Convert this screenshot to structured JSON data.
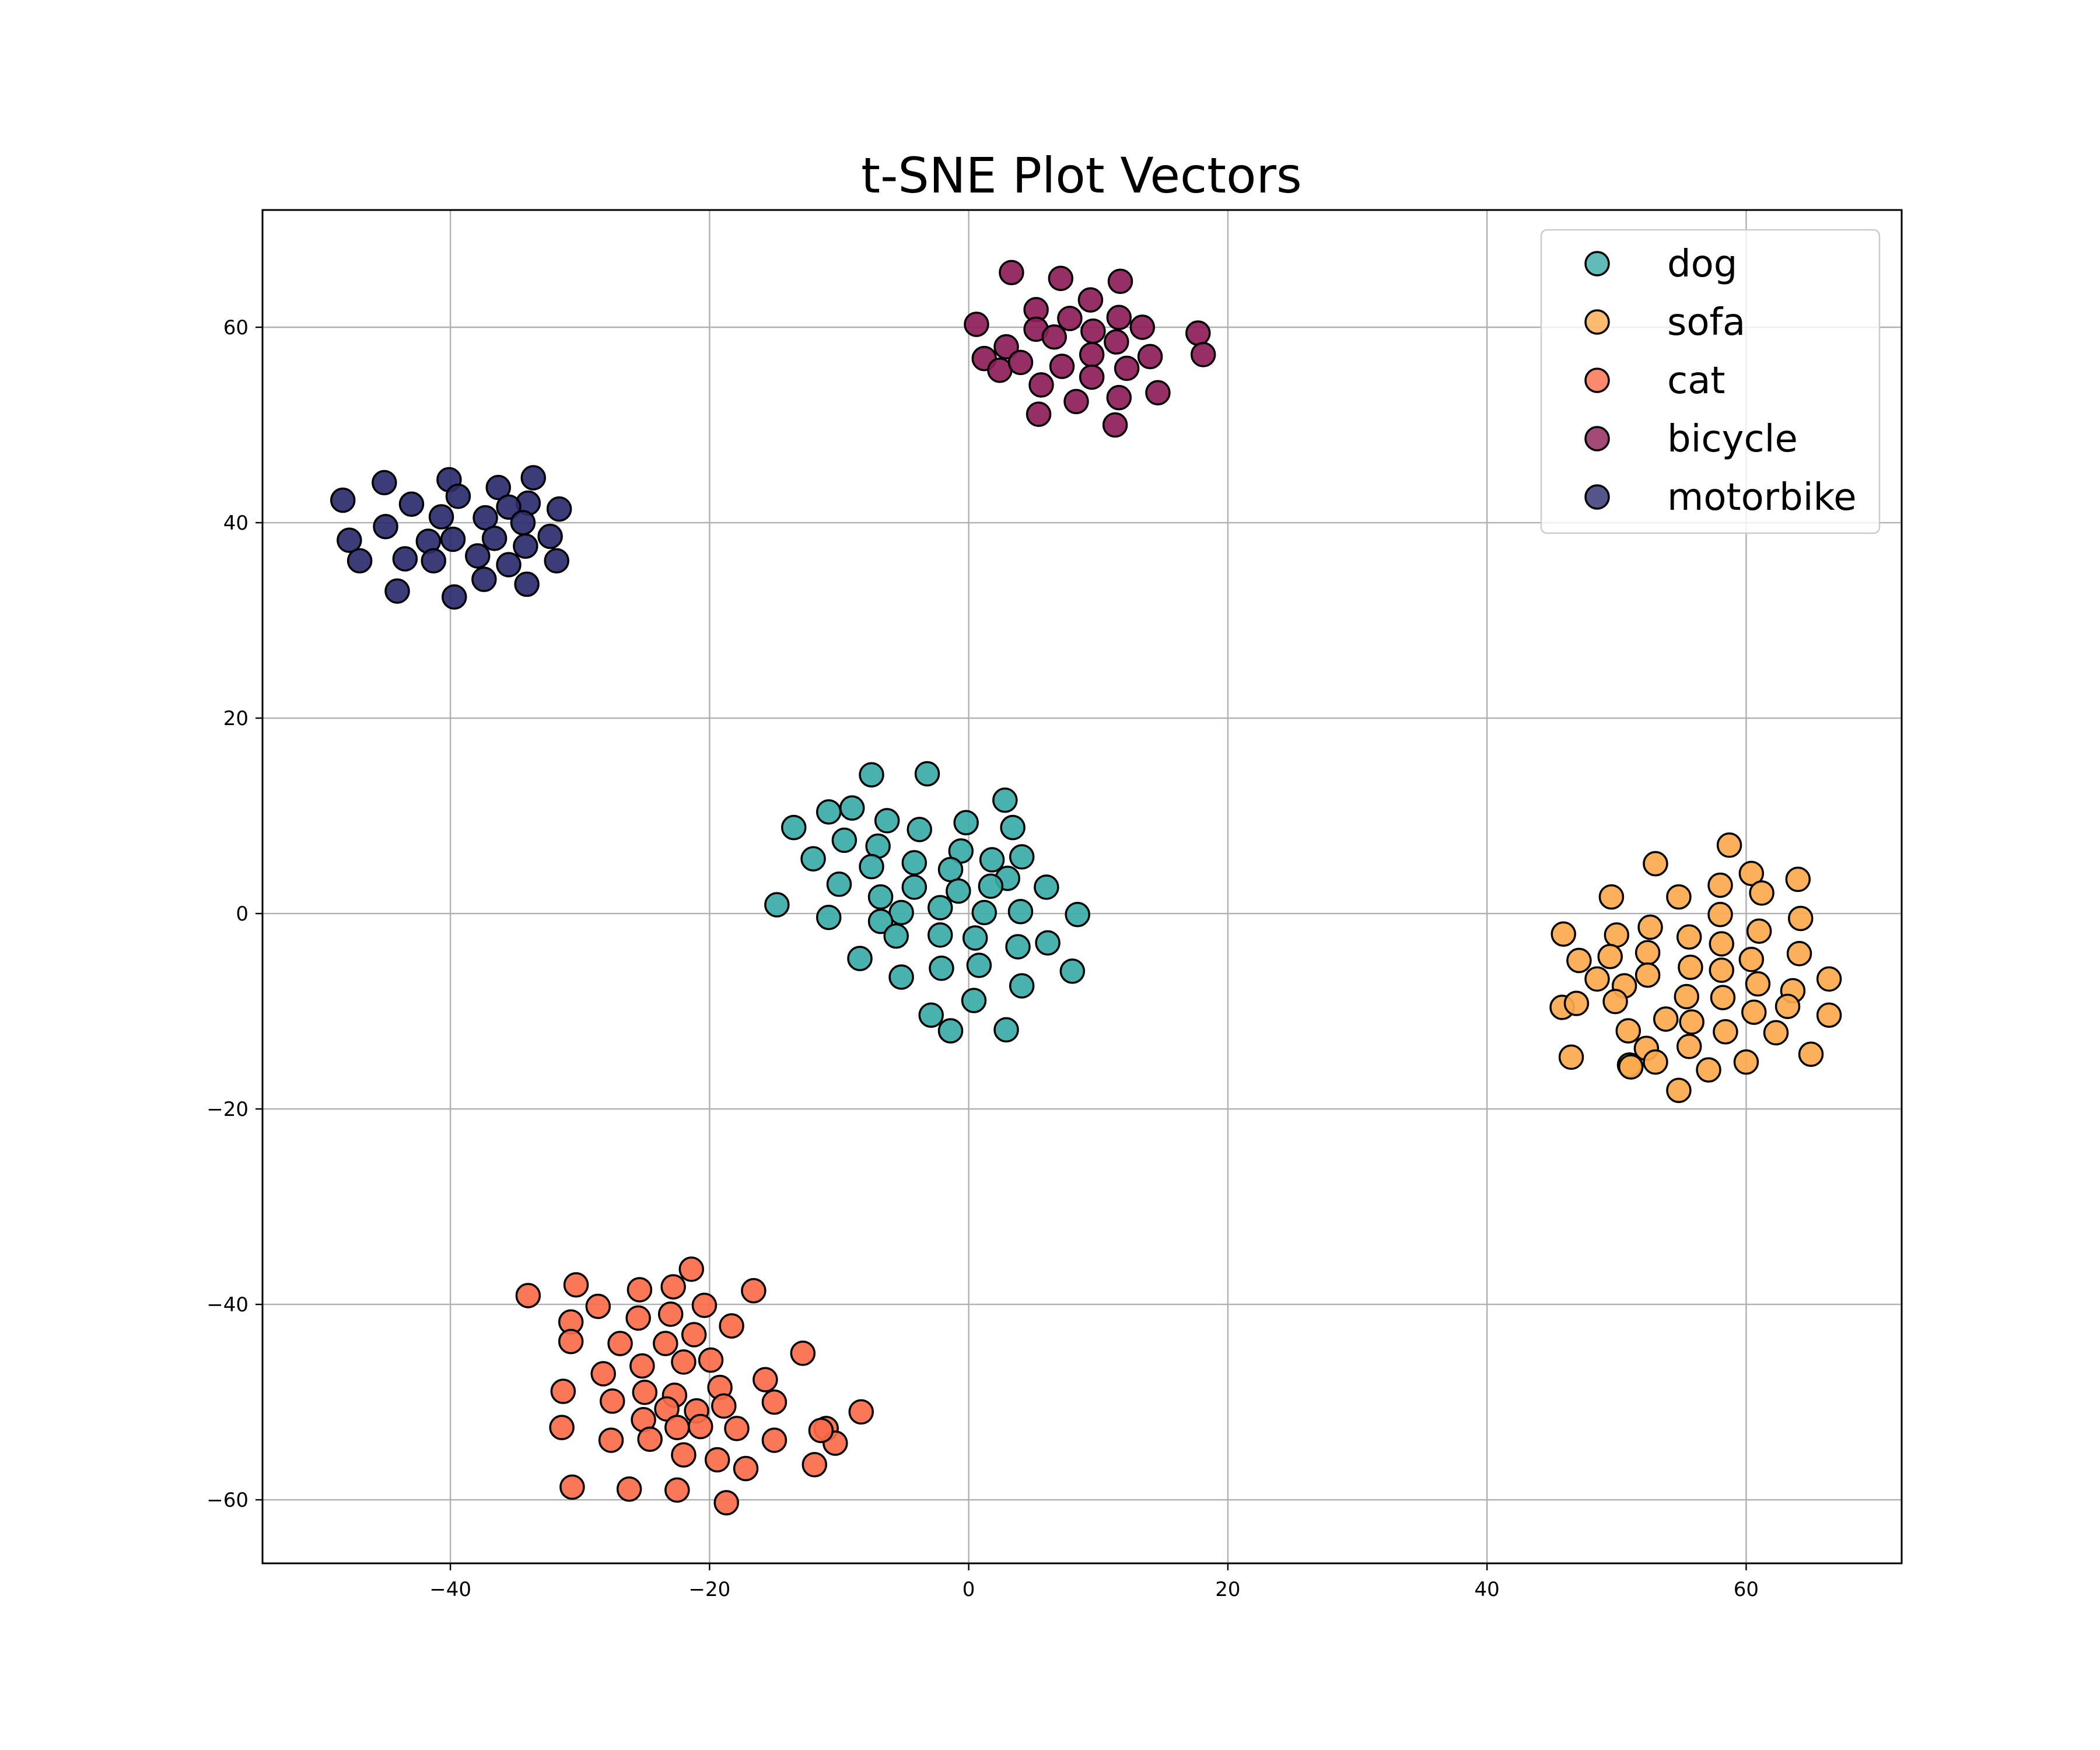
{
  "chart_data": {
    "type": "scatter",
    "title": "t-SNE Plot Vectors",
    "xlabel": "",
    "ylabel": "",
    "xlim": [
      -54.5,
      72
    ],
    "ylim": [
      -66.5,
      72
    ],
    "xticks": [
      -40,
      -20,
      0,
      20,
      40,
      60
    ],
    "yticks": [
      -60,
      -40,
      -20,
      0,
      20,
      40,
      60
    ],
    "xtick_labels": [
      "−40",
      "−20",
      "0",
      "20",
      "40",
      "60"
    ],
    "ytick_labels": [
      "−60",
      "−40",
      "−20",
      "0",
      "20",
      "40",
      "60"
    ],
    "grid": true,
    "legend_position": "top-right",
    "series": [
      {
        "name": "dog",
        "color": "#3aaba8",
        "points": [
          [
            -7.5,
            14.2
          ],
          [
            -3.2,
            14.3
          ],
          [
            2.8,
            11.6
          ],
          [
            -13.5,
            8.8
          ],
          [
            -10.8,
            10.4
          ],
          [
            -9.0,
            10.8
          ],
          [
            -6.3,
            9.5
          ],
          [
            -3.8,
            8.6
          ],
          [
            -0.2,
            9.3
          ],
          [
            3.4,
            8.8
          ],
          [
            -12.0,
            5.6
          ],
          [
            -9.6,
            7.5
          ],
          [
            -7.0,
            6.9
          ],
          [
            -7.5,
            4.8
          ],
          [
            -4.2,
            5.2
          ],
          [
            -0.6,
            6.4
          ],
          [
            1.8,
            5.5
          ],
          [
            4.1,
            5.8
          ],
          [
            -1.4,
            4.5
          ],
          [
            3.0,
            3.6
          ],
          [
            -10.0,
            3.0
          ],
          [
            -4.2,
            2.7
          ],
          [
            -0.8,
            2.3
          ],
          [
            1.7,
            2.8
          ],
          [
            6.0,
            2.7
          ],
          [
            -14.8,
            0.9
          ],
          [
            -10.8,
            -0.4
          ],
          [
            -6.8,
            1.7
          ],
          [
            -5.2,
            0.1
          ],
          [
            -2.2,
            0.6
          ],
          [
            1.2,
            0.1
          ],
          [
            4.0,
            0.2
          ],
          [
            8.4,
            -0.1
          ],
          [
            -6.8,
            -0.8
          ],
          [
            -5.6,
            -2.3
          ],
          [
            -2.2,
            -2.2
          ],
          [
            0.5,
            -2.5
          ],
          [
            3.8,
            -3.4
          ],
          [
            6.1,
            -3.0
          ],
          [
            -8.4,
            -4.6
          ],
          [
            -5.2,
            -6.5
          ],
          [
            -2.1,
            -5.6
          ],
          [
            0.8,
            -5.3
          ],
          [
            4.1,
            -7.4
          ],
          [
            8.0,
            -5.9
          ],
          [
            -2.9,
            -10.4
          ],
          [
            -1.4,
            -12.0
          ],
          [
            0.4,
            -8.9
          ],
          [
            2.9,
            -11.9
          ]
        ]
      },
      {
        "name": "sofa",
        "color": "#fca94d",
        "points": [
          [
            53.0,
            5.1
          ],
          [
            58.7,
            7.0
          ],
          [
            60.4,
            4.1
          ],
          [
            64.0,
            3.5
          ],
          [
            49.6,
            1.7
          ],
          [
            54.8,
            1.7
          ],
          [
            58.0,
            2.9
          ],
          [
            61.2,
            2.1
          ],
          [
            45.9,
            -2.1
          ],
          [
            50.0,
            -2.2
          ],
          [
            52.6,
            -1.4
          ],
          [
            55.6,
            -2.4
          ],
          [
            58.0,
            -0.1
          ],
          [
            61.0,
            -1.8
          ],
          [
            64.2,
            -0.5
          ],
          [
            47.1,
            -4.8
          ],
          [
            48.5,
            -6.7
          ],
          [
            50.6,
            -7.4
          ],
          [
            52.4,
            -4.0
          ],
          [
            55.7,
            -5.5
          ],
          [
            58.1,
            -3.1
          ],
          [
            60.4,
            -4.7
          ],
          [
            64.1,
            -4.1
          ],
          [
            66.4,
            -6.7
          ],
          [
            45.8,
            -9.6
          ],
          [
            46.9,
            -9.2
          ],
          [
            49.9,
            -9.0
          ],
          [
            52.4,
            -6.3
          ],
          [
            53.8,
            -10.8
          ],
          [
            55.4,
            -8.5
          ],
          [
            58.1,
            -5.8
          ],
          [
            58.2,
            -8.6
          ],
          [
            60.9,
            -7.2
          ],
          [
            63.6,
            -7.9
          ],
          [
            50.9,
            -12.0
          ],
          [
            52.3,
            -13.8
          ],
          [
            55.8,
            -11.1
          ],
          [
            58.4,
            -12.1
          ],
          [
            60.6,
            -10.1
          ],
          [
            63.2,
            -9.5
          ],
          [
            66.4,
            -10.4
          ],
          [
            46.5,
            -14.7
          ],
          [
            51.0,
            -15.5
          ],
          [
            53.0,
            -15.2
          ],
          [
            55.6,
            -13.6
          ],
          [
            57.1,
            -16.0
          ],
          [
            60.0,
            -15.2
          ],
          [
            62.3,
            -12.2
          ],
          [
            65.0,
            -14.4
          ],
          [
            54.8,
            -18.1
          ],
          [
            49.5,
            -4.4
          ],
          [
            51.1,
            -15.7
          ]
        ]
      },
      {
        "name": "cat",
        "color": "#fa6b4a",
        "points": [
          [
            -21.4,
            -36.4
          ],
          [
            -30.3,
            -38.0
          ],
          [
            -34.0,
            -39.1
          ],
          [
            -25.4,
            -38.5
          ],
          [
            -22.8,
            -38.2
          ],
          [
            -16.6,
            -38.6
          ],
          [
            -28.6,
            -40.2
          ],
          [
            -25.5,
            -41.4
          ],
          [
            -23.0,
            -41.0
          ],
          [
            -20.4,
            -40.1
          ],
          [
            -30.7,
            -41.8
          ],
          [
            -18.3,
            -42.2
          ],
          [
            -30.7,
            -43.8
          ],
          [
            -26.9,
            -44.0
          ],
          [
            -23.4,
            -44.0
          ],
          [
            -21.2,
            -43.1
          ],
          [
            -12.8,
            -45.0
          ],
          [
            -28.2,
            -47.1
          ],
          [
            -25.2,
            -46.3
          ],
          [
            -22.0,
            -45.9
          ],
          [
            -19.9,
            -45.7
          ],
          [
            -15.7,
            -47.7
          ],
          [
            -31.3,
            -48.9
          ],
          [
            -25.0,
            -49.0
          ],
          [
            -22.7,
            -49.3
          ],
          [
            -19.2,
            -48.5
          ],
          [
            -27.5,
            -49.9
          ],
          [
            -23.3,
            -50.7
          ],
          [
            -21.0,
            -50.9
          ],
          [
            -18.9,
            -50.4
          ],
          [
            -15.0,
            -50.0
          ],
          [
            -8.3,
            -51.0
          ],
          [
            -31.4,
            -52.6
          ],
          [
            -25.1,
            -51.8
          ],
          [
            -22.5,
            -52.6
          ],
          [
            -20.7,
            -52.5
          ],
          [
            -17.9,
            -52.7
          ],
          [
            -11.0,
            -52.7
          ],
          [
            -27.6,
            -53.9
          ],
          [
            -24.6,
            -53.8
          ],
          [
            -15.0,
            -53.9
          ],
          [
            -10.3,
            -54.2
          ],
          [
            -22.0,
            -55.4
          ],
          [
            -19.4,
            -55.9
          ],
          [
            -17.2,
            -56.8
          ],
          [
            -11.9,
            -56.4
          ],
          [
            -30.6,
            -58.7
          ],
          [
            -26.2,
            -58.9
          ],
          [
            -22.5,
            -59.0
          ],
          [
            -18.7,
            -60.3
          ],
          [
            -11.4,
            -52.9
          ]
        ]
      },
      {
        "name": "bicycle",
        "color": "#8c1d58",
        "points": [
          [
            3.3,
            65.6
          ],
          [
            7.1,
            65.0
          ],
          [
            11.7,
            64.7
          ],
          [
            5.2,
            61.8
          ],
          [
            9.4,
            62.8
          ],
          [
            0.6,
            60.3
          ],
          [
            5.2,
            59.8
          ],
          [
            7.8,
            60.9
          ],
          [
            9.6,
            59.6
          ],
          [
            11.6,
            61.0
          ],
          [
            13.4,
            60.0
          ],
          [
            17.7,
            59.4
          ],
          [
            2.9,
            58.0
          ],
          [
            6.6,
            59.0
          ],
          [
            11.4,
            58.5
          ],
          [
            1.2,
            56.8
          ],
          [
            2.4,
            55.6
          ],
          [
            4.0,
            56.4
          ],
          [
            7.2,
            56.0
          ],
          [
            9.5,
            57.2
          ],
          [
            12.2,
            55.8
          ],
          [
            14.0,
            57.0
          ],
          [
            18.1,
            57.2
          ],
          [
            5.6,
            54.1
          ],
          [
            9.5,
            54.9
          ],
          [
            8.3,
            52.4
          ],
          [
            11.6,
            52.8
          ],
          [
            14.6,
            53.3
          ],
          [
            5.4,
            51.1
          ],
          [
            11.3,
            50.0
          ]
        ]
      },
      {
        "name": "motorbike",
        "color": "#2b2b6e",
        "points": [
          [
            -40.1,
            44.4
          ],
          [
            -45.1,
            44.1
          ],
          [
            -33.6,
            44.6
          ],
          [
            -36.3,
            43.6
          ],
          [
            -48.3,
            42.3
          ],
          [
            -43.0,
            41.9
          ],
          [
            -39.4,
            42.7
          ],
          [
            -34.0,
            42.0
          ],
          [
            -35.5,
            41.6
          ],
          [
            -31.6,
            41.4
          ],
          [
            -40.7,
            40.6
          ],
          [
            -37.3,
            40.5
          ],
          [
            -34.4,
            40.0
          ],
          [
            -45.0,
            39.6
          ],
          [
            -47.8,
            38.2
          ],
          [
            -41.7,
            38.1
          ],
          [
            -39.8,
            38.3
          ],
          [
            -36.6,
            38.4
          ],
          [
            -32.3,
            38.6
          ],
          [
            -34.2,
            37.6
          ],
          [
            -47.0,
            36.1
          ],
          [
            -43.5,
            36.3
          ],
          [
            -41.3,
            36.1
          ],
          [
            -37.9,
            36.6
          ],
          [
            -35.5,
            35.7
          ],
          [
            -31.8,
            36.1
          ],
          [
            -37.4,
            34.2
          ],
          [
            -44.1,
            33.0
          ],
          [
            -34.1,
            33.7
          ],
          [
            -39.7,
            32.4
          ]
        ]
      }
    ]
  }
}
